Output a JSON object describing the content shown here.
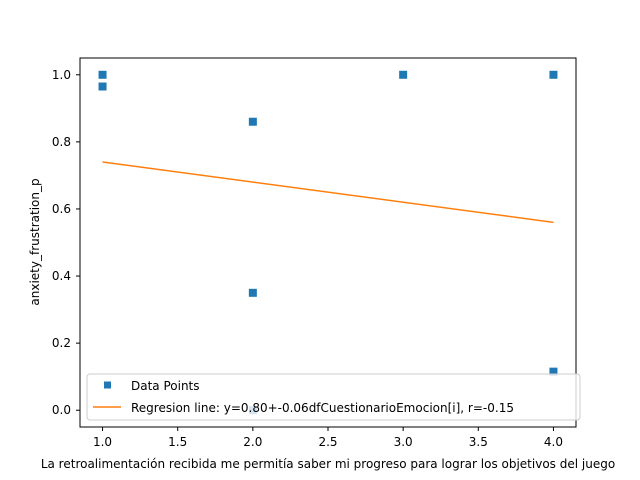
{
  "chart_data": {
    "type": "scatter",
    "xlabel": "La retroalimentación recibida  me permitía saber mi progreso para lograr los objetivos del juego",
    "ylabel": "anxiety_frustration_p",
    "xlim": [
      0.85,
      4.15
    ],
    "ylim": [
      -0.05,
      1.05
    ],
    "x_ticks": [
      1.0,
      1.5,
      2.0,
      2.5,
      3.0,
      3.5,
      4.0
    ],
    "x_tick_labels": [
      "1.0",
      "1.5",
      "2.0",
      "2.5",
      "3.0",
      "3.5",
      "4.0"
    ],
    "y_ticks": [
      0.0,
      0.2,
      0.4,
      0.6,
      0.8,
      1.0
    ],
    "y_tick_labels": [
      "0.0",
      "0.2",
      "0.4",
      "0.6",
      "0.8",
      "1.0"
    ],
    "grid": false,
    "legend_placement": "lower-left",
    "series": [
      {
        "name": "Data Points",
        "kind": "markers",
        "marker": "square",
        "color": "#1f77b4",
        "points": [
          {
            "x": 1,
            "y": 1.0
          },
          {
            "x": 1,
            "y": 0.965
          },
          {
            "x": 2,
            "y": 0.86
          },
          {
            "x": 2,
            "y": 0.35
          },
          {
            "x": 2,
            "y": 0.0
          },
          {
            "x": 3,
            "y": 1.0
          },
          {
            "x": 4,
            "y": 1.0
          },
          {
            "x": 4,
            "y": 0.115
          }
        ]
      },
      {
        "name": "Regresion line: y=0.80+-0.06dfCuestionarioEmocion[i], r=-0.15",
        "kind": "line",
        "color": "#ff7f0e",
        "points": [
          {
            "x": 1,
            "y": 0.74
          },
          {
            "x": 4,
            "y": 0.56
          }
        ]
      }
    ]
  }
}
